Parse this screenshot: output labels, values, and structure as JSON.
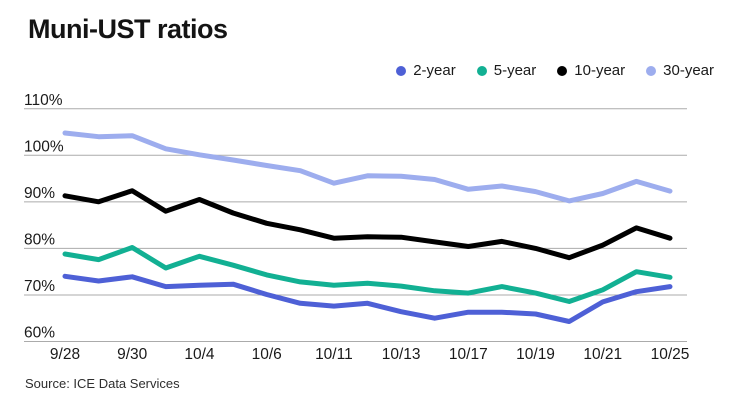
{
  "source": "Source: ICE Data Services",
  "chart_data": {
    "type": "line",
    "title": "Muni-UST ratios",
    "legend_position": "top-right",
    "grid": true,
    "grid_color": "#ababab",
    "text_color": "#1a1a1a",
    "ylim": [
      60,
      110
    ],
    "y_ticks": [
      {
        "value": 60,
        "label": "60%"
      },
      {
        "value": 70,
        "label": "70%"
      },
      {
        "value": 80,
        "label": "80%"
      },
      {
        "value": 90,
        "label": "90%"
      },
      {
        "value": 100,
        "label": "100%"
      },
      {
        "value": 110,
        "label": "110%"
      }
    ],
    "x_point_count": 19,
    "x_ticks": [
      {
        "index": 0,
        "label": "9/28"
      },
      {
        "index": 2,
        "label": "9/30"
      },
      {
        "index": 4,
        "label": "10/4"
      },
      {
        "index": 6,
        "label": "10/6"
      },
      {
        "index": 8,
        "label": "10/11"
      },
      {
        "index": 10,
        "label": "10/13"
      },
      {
        "index": 12,
        "label": "10/17"
      },
      {
        "index": 14,
        "label": "10/19"
      },
      {
        "index": 16,
        "label": "10/21"
      },
      {
        "index": 18,
        "label": "10/25"
      }
    ],
    "series": [
      {
        "name": "2-year",
        "color": "#4e60d6",
        "values": [
          74.0,
          73.0,
          73.9,
          71.8,
          72.1,
          72.3,
          70.1,
          68.2,
          67.6,
          68.2,
          66.4,
          65.0,
          66.3,
          66.3,
          65.9,
          64.3,
          68.5,
          70.7,
          71.8
        ]
      },
      {
        "name": "5-year",
        "color": "#12b093",
        "values": [
          78.8,
          77.6,
          80.2,
          75.8,
          78.3,
          76.4,
          74.3,
          72.8,
          72.1,
          72.5,
          71.9,
          70.9,
          70.4,
          71.8,
          70.4,
          68.6,
          71.1,
          75.0,
          73.8
        ]
      },
      {
        "name": "10-year",
        "color": "#000000",
        "values": [
          91.3,
          90.0,
          92.4,
          88.0,
          90.5,
          87.6,
          85.4,
          84.0,
          82.2,
          82.5,
          82.4,
          81.4,
          80.4,
          81.5,
          80.0,
          78.0,
          80.7,
          84.4,
          82.2
        ]
      },
      {
        "name": "30-year",
        "color": "#9dadee",
        "values": [
          104.8,
          104.0,
          104.2,
          101.4,
          100.1,
          99.0,
          97.8,
          96.7,
          94.0,
          95.6,
          95.5,
          94.8,
          92.7,
          93.4,
          92.2,
          90.2,
          91.8,
          94.4,
          92.3
        ]
      }
    ]
  }
}
